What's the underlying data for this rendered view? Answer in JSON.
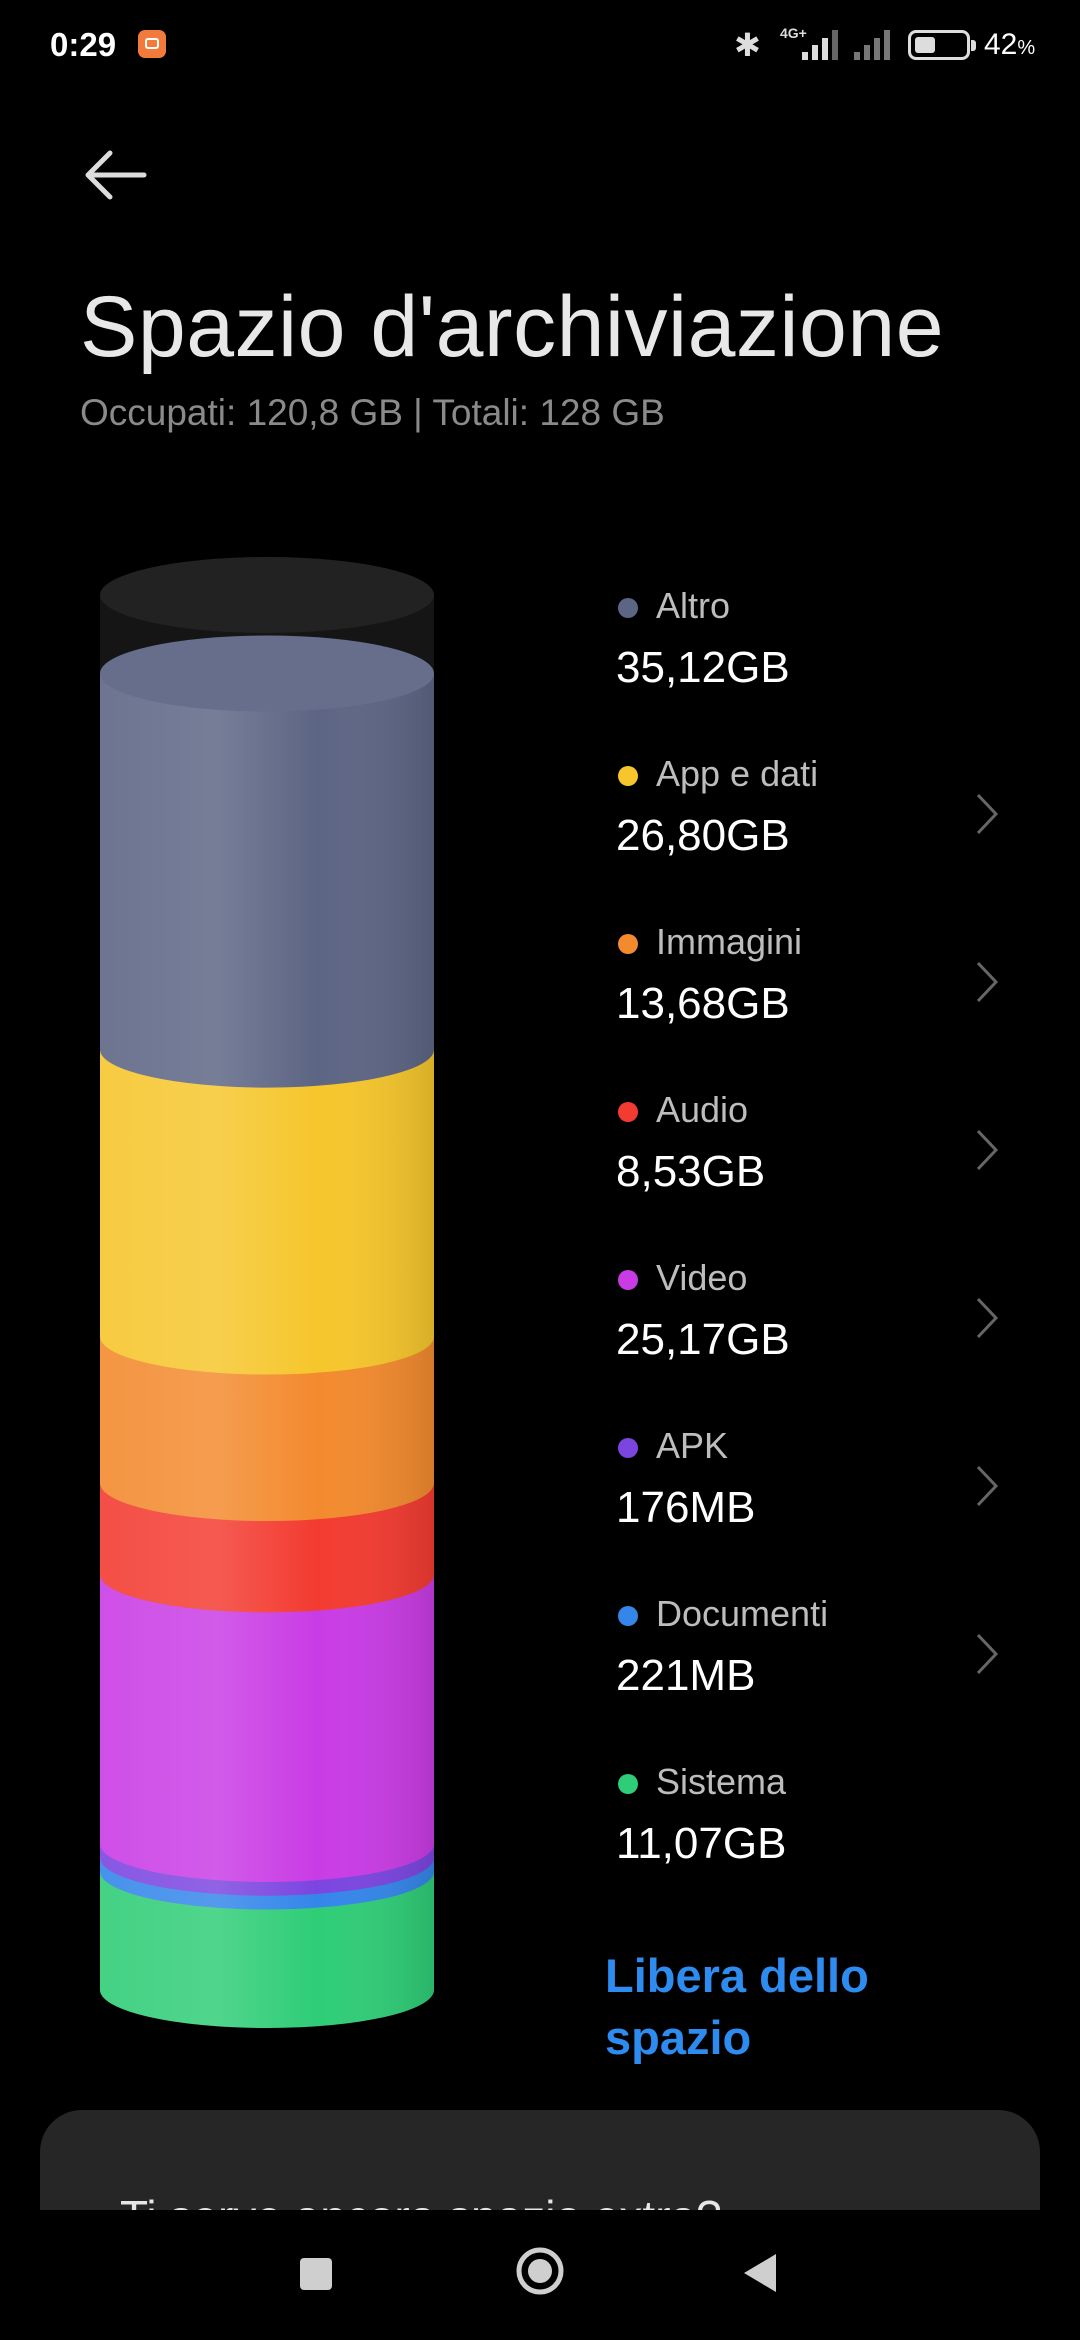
{
  "status_bar": {
    "time": "0:29",
    "network": "4G+",
    "battery_percent": "42",
    "battery_unit": "%",
    "battery_level": 0.42,
    "icons": [
      "notification-app-icon",
      "bluetooth-icon",
      "signal-icon",
      "battery-icon"
    ]
  },
  "header": {
    "back_icon": "arrow-left-icon",
    "title": "Spazio d'archiviazione",
    "subtitle": "Occupati: 120,8 GB | Totali: 128 GB"
  },
  "storage": {
    "used_gb": 120.8,
    "total_gb": 128,
    "categories": [
      {
        "label": "Altro",
        "value": "35,12GB",
        "gb": 35.12,
        "color": "#5d6584",
        "has_chevron": false
      },
      {
        "label": "App e dati",
        "value": "26,80GB",
        "gb": 26.8,
        "color": "#f6c62c",
        "has_chevron": true
      },
      {
        "label": "Immagini",
        "value": "13,68GB",
        "gb": 13.68,
        "color": "#f38a2e",
        "has_chevron": true
      },
      {
        "label": "Audio",
        "value": "8,53GB",
        "gb": 8.53,
        "color": "#f33b31",
        "has_chevron": true
      },
      {
        "label": "Video",
        "value": "25,17GB",
        "gb": 25.17,
        "color": "#c93ce5",
        "has_chevron": true
      },
      {
        "label": "APK",
        "value": "176MB",
        "gb": 0.176,
        "color": "#7b45e0",
        "has_chevron": true
      },
      {
        "label": "Documenti",
        "value": "221MB",
        "gb": 0.221,
        "color": "#3486ea",
        "has_chevron": true
      },
      {
        "label": "Sistema",
        "value": "11,07GB",
        "gb": 11.07,
        "color": "#2fcd77",
        "has_chevron": false
      }
    ]
  },
  "actions": {
    "free_space": "Libera dello spazio"
  },
  "card": {
    "text": "Ti serve ancora spazio extra?"
  },
  "nav_bar": {
    "icons": [
      "recents-square-icon",
      "home-circle-icon",
      "back-triangle-icon"
    ]
  }
}
